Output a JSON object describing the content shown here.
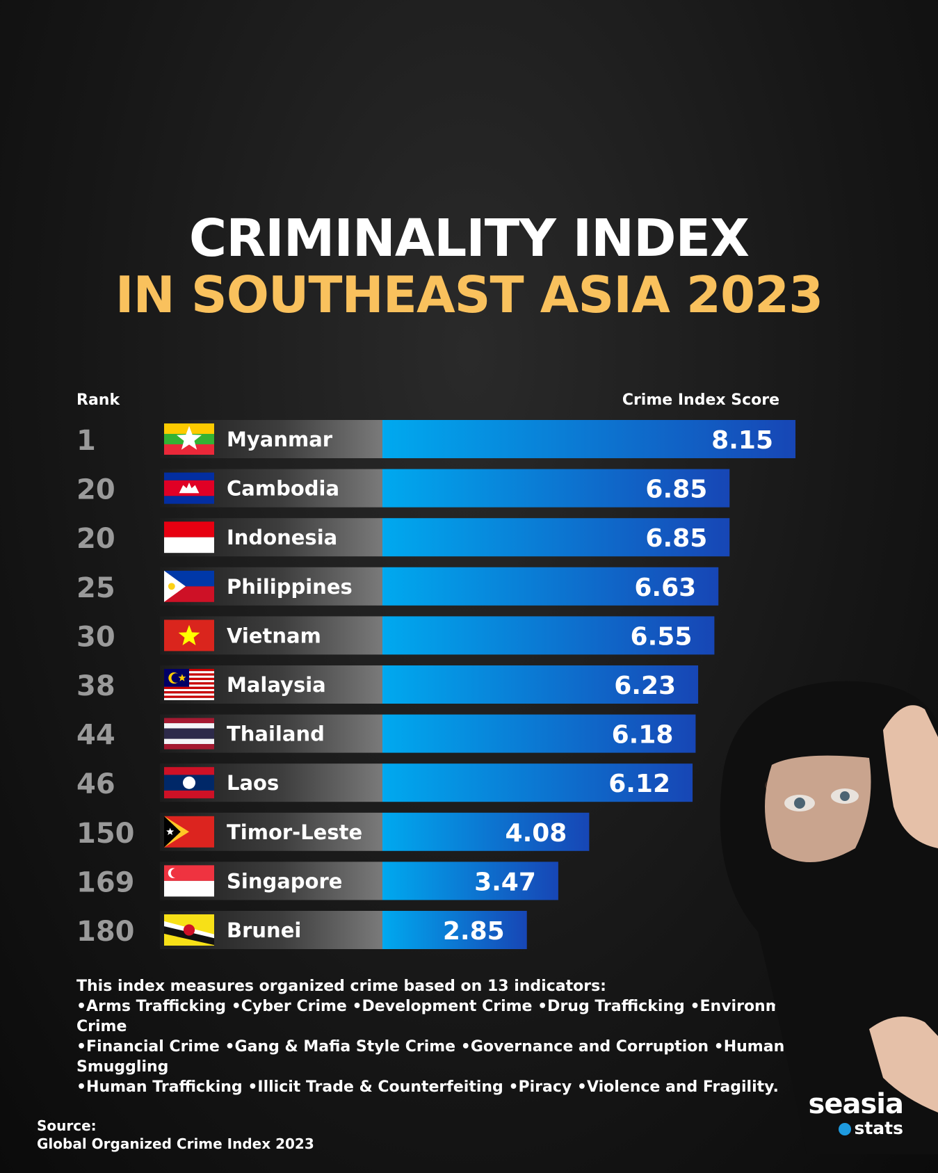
{
  "title_line1": "CRIMINALITY INDEX",
  "title_line2": "IN SOUTHEAST ASIA 2023",
  "header_rank": "Rank",
  "header_score": "Crime Index Score",
  "colors": {
    "title_accent": "#f9c15d",
    "bar_light": "#00a9ef",
    "bar_dark": "#1746b5",
    "rank_text": "#9a9a9a"
  },
  "chart_data": {
    "type": "bar",
    "orientation": "horizontal",
    "title": "CRIMINALITY INDEX IN SOUTHEAST ASIA 2023",
    "xlabel": "Crime Index Score",
    "ylabel": "Rank",
    "xlim": [
      0,
      8.15
    ],
    "grid": false,
    "rows": [
      {
        "rank": "1",
        "country": "Myanmar",
        "score": 8.15,
        "label": "8.15",
        "flag": "myanmar-flag"
      },
      {
        "rank": "20",
        "country": "Cambodia",
        "score": 6.85,
        "label": "6.85",
        "flag": "cambodia-flag"
      },
      {
        "rank": "20",
        "country": "Indonesia",
        "score": 6.85,
        "label": "6.85",
        "flag": "indonesia-flag"
      },
      {
        "rank": "25",
        "country": "Philippines",
        "score": 6.63,
        "label": "6.63",
        "flag": "philippines-flag"
      },
      {
        "rank": "30",
        "country": "Vietnam",
        "score": 6.55,
        "label": "6.55",
        "flag": "vietnam-flag"
      },
      {
        "rank": "38",
        "country": "Malaysia",
        "score": 6.23,
        "label": "6.23",
        "flag": "malaysia-flag"
      },
      {
        "rank": "44",
        "country": "Thailand",
        "score": 6.18,
        "label": "6.18",
        "flag": "thailand-flag"
      },
      {
        "rank": "46",
        "country": "Laos",
        "score": 6.12,
        "label": "6.12",
        "flag": "laos-flag"
      },
      {
        "rank": "150",
        "country": "Timor-Leste",
        "score": 4.08,
        "label": "4.08",
        "flag": "timor-leste-flag"
      },
      {
        "rank": "169",
        "country": "Singapore",
        "score": 3.47,
        "label": "3.47",
        "flag": "singapore-flag"
      },
      {
        "rank": "180",
        "country": "Brunei",
        "score": 2.85,
        "label": "2.85",
        "flag": "brunei-flag"
      }
    ]
  },
  "footnote": {
    "intro": "This index measures organized crime based on 13 indicators:",
    "line1": "•Arms Trafficking •Cyber Crime •Development Crime •Drug Trafficking •Environmental Crime",
    "line2": "•Financial Crime •Gang & Mafia Style Crime •Governance and Corruption •Human Smuggling",
    "line3": "•Human Trafficking •Illicit Trade & Counterfeiting •Piracy •Violence and Fragility."
  },
  "source": {
    "label": "Source:",
    "value": "Global Organized Crime Index 2023"
  },
  "logo": {
    "main": "seasia",
    "sub": "stats"
  }
}
